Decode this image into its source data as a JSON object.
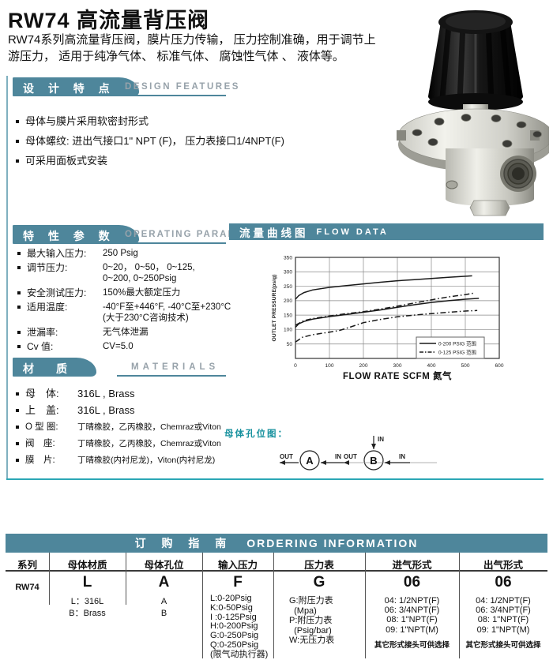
{
  "header": {
    "title": "RW74 高流量背压阀",
    "description": "RW74系列高流量背压阀，膜片压力传输， 压力控制准确，用于调节上游压力， 适用于纯净气体、 标准气体、 腐蚀性气体 、 液体等。"
  },
  "design_features": {
    "title_cn": "设 计 特 点",
    "title_en": "DESIGN FEATURES",
    "items": [
      "母体与膜片采用软密封形式",
      "母体螺纹: 进出气接口1\" NPT (F)， 压力表接口1/4NPT(F)",
      "可采用面板式安装"
    ]
  },
  "operating_parameters": {
    "title_cn": "特 性 参 数",
    "title_en": "OPERATING PARAMETERS",
    "rows": [
      {
        "label": "最大输入压力:",
        "value": "250 Psig"
      },
      {
        "label": "调节压力:",
        "value": "0~20， 0~50， 0~125,\n0~200, 0~250Psig"
      },
      {
        "label": "安全测试压力:",
        "value": "150%最大额定压力"
      },
      {
        "label": "适用温度:",
        "value": "-40°F至+446°F, -40°C至+230°C\n(大于230°C咨询技术)"
      },
      {
        "label": "泄漏率:",
        "value": "无气体泄漏"
      },
      {
        "label": "Cv 值:",
        "value": "CV=5.0"
      }
    ]
  },
  "materials": {
    "title_cn": "材　质",
    "title_en": "MATERIALS",
    "rows": [
      {
        "label": "母　体:",
        "value": "316L , Brass"
      },
      {
        "label": "上　盖:",
        "value": "316L , Brass"
      },
      {
        "label": "O 型 圈:",
        "value": "丁晴橡胶，乙丙橡胶，Chemraz或Viton"
      },
      {
        "label": "阀　座:",
        "value": "丁晴橡胶，乙丙橡胶，Chemraz或Viton"
      },
      {
        "label": "膜　片:",
        "value": "丁晴橡胶(内衬尼龙)，Viton(内衬尼龙)"
      }
    ]
  },
  "flow_section": {
    "title_cn": "流量曲线图",
    "title_en": "FLOW DATA"
  },
  "chart_data": {
    "type": "line",
    "title": "流量曲线图 FLOW DATA",
    "xlabel": "FLOW RATE SCFM 氮气",
    "ylabel": "OUTLET PRESSURE(psig)",
    "xlim": [
      0,
      600
    ],
    "ylim": [
      0,
      350
    ],
    "xticks": [
      0,
      100,
      200,
      300,
      400,
      500,
      600
    ],
    "yticks": [
      50,
      100,
      150,
      200,
      250,
      300,
      350
    ],
    "grid": true,
    "legend_position": "lower right",
    "legend": [
      {
        "label": "0-200 PSIG 范围",
        "style": "solid"
      },
      {
        "label": "0-125 PSIG 范围",
        "style": "dashdot"
      }
    ],
    "series": [
      {
        "name": "0-200 PSIG 范围 上线",
        "style": "solid",
        "points": [
          [
            0,
            205
          ],
          [
            10,
            218
          ],
          [
            25,
            228
          ],
          [
            50,
            237
          ],
          [
            100,
            246
          ],
          [
            150,
            252
          ],
          [
            200,
            258
          ],
          [
            250,
            264
          ],
          [
            300,
            269
          ],
          [
            350,
            273
          ],
          [
            400,
            277
          ],
          [
            450,
            281
          ],
          [
            520,
            286
          ]
        ]
      },
      {
        "name": "0-200 PSIG 范围 下线",
        "style": "solid",
        "points": [
          [
            0,
            108
          ],
          [
            10,
            120
          ],
          [
            25,
            128
          ],
          [
            50,
            136
          ],
          [
            100,
            145
          ],
          [
            150,
            152
          ],
          [
            200,
            160
          ],
          [
            250,
            168
          ],
          [
            300,
            177
          ],
          [
            350,
            186
          ],
          [
            400,
            194
          ],
          [
            450,
            200
          ],
          [
            500,
            205
          ],
          [
            540,
            208
          ]
        ]
      },
      {
        "name": "0-125 PSIG 范围 上线",
        "style": "dashdot",
        "points": [
          [
            0,
            115
          ],
          [
            25,
            131
          ],
          [
            50,
            138
          ],
          [
            100,
            147
          ],
          [
            150,
            155
          ],
          [
            200,
            162
          ],
          [
            250,
            171
          ],
          [
            300,
            181
          ],
          [
            350,
            192
          ],
          [
            400,
            203
          ],
          [
            450,
            213
          ],
          [
            500,
            221
          ],
          [
            525,
            226
          ]
        ]
      },
      {
        "name": "0-125 PSIG 范围 下线",
        "style": "dashdot",
        "points": [
          [
            0,
            57
          ],
          [
            20,
            73
          ],
          [
            50,
            82
          ],
          [
            100,
            91
          ],
          [
            130,
            97
          ],
          [
            160,
            108
          ],
          [
            200,
            124
          ],
          [
            250,
            135
          ],
          [
            300,
            144
          ],
          [
            350,
            150
          ],
          [
            400,
            155
          ],
          [
            450,
            160
          ],
          [
            500,
            164
          ],
          [
            535,
            166
          ]
        ]
      }
    ]
  },
  "port_diagram": {
    "label": "母体孔位图：",
    "out_label": "OUT",
    "in_label": "IN",
    "circle_a": "A",
    "circle_b": "B"
  },
  "ordering": {
    "title_cn": "订 购 指 南",
    "title_en": "ORDERING  INFORMATION",
    "columns": [
      {
        "header": "系列",
        "code": "RW74",
        "details": []
      },
      {
        "header": "母体材质",
        "code": "L",
        "details": [
          "L：316L",
          "B：Brass"
        ]
      },
      {
        "header": "母体孔位",
        "code": "A",
        "details": [
          "A",
          "B"
        ]
      },
      {
        "header": "输入压力",
        "code": "F",
        "details": [
          "L:0-20Psig",
          "K:0-50Psig",
          "I :0-125Psig",
          "H:0-200Psig",
          "G:0-250Psig",
          "Q:0-250Psig",
          "(限气动执行器)"
        ]
      },
      {
        "header": "压力表",
        "code": "G",
        "details": [
          "G:附压力表",
          "  (Mpa)",
          "P:附压力表",
          "  (Psig/bar)",
          "W:无压力表"
        ]
      },
      {
        "header": "进气形式",
        "code": "06",
        "details": [
          "04: 1/2NPT(F)",
          "06: 3/4NPT(F)",
          "08: 1\"NPT(F)",
          "09: 1\"NPT(M)"
        ],
        "note": "其它形式接头可供选择"
      },
      {
        "header": "出气形式",
        "code": "06",
        "details": [
          "04: 1/2NPT(F)",
          "06: 3/4NPT(F)",
          "08: 1\"NPT(F)",
          "09: 1\"NPT(M)"
        ],
        "note": "其它形式接头可供选择"
      }
    ]
  },
  "colors": {
    "teal": "#4e869b",
    "accent_line": "#2ba7b5",
    "diagram_label": "#17919e",
    "curve": "#1a1a1a"
  }
}
